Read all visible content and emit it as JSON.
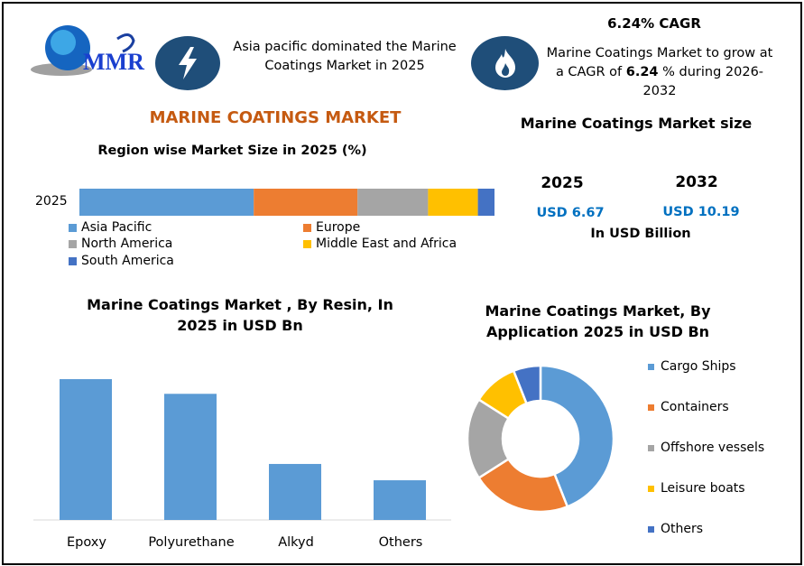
{
  "logo": {
    "text": "MMR"
  },
  "header": {
    "asia_text": "Asia pacific dominated the Marine Coatings Market in 2025",
    "cagr_title": "6.24% CAGR",
    "cagr_text_pre": "Marine Coatings Market to grow at a CAGR of ",
    "cagr_value": "6.24",
    "cagr_text_post": " % during 2026-2032",
    "icons": [
      "lightning-icon",
      "flame-icon"
    ],
    "icon_color": "#1f4e79"
  },
  "main_title": "MARINE COATINGS MARKET",
  "main_title_color": "#c55a11",
  "market_size": {
    "title": "Marine Coatings Market size",
    "year1": "2025",
    "value1": "USD 6.67",
    "year2": "2032",
    "value2": "USD 10.19",
    "unit": "In USD Billion",
    "value_color": "#0070c0"
  },
  "chart_data": [
    {
      "type": "bar",
      "stacked": true,
      "orientation": "horizontal",
      "title": "Region wise Market Size in 2025 (%)",
      "categories": [
        "2025"
      ],
      "series": [
        {
          "name": "Asia Pacific",
          "values": [
            42
          ],
          "color": "#5b9bd5"
        },
        {
          "name": "Europe",
          "values": [
            25
          ],
          "color": "#ed7d31"
        },
        {
          "name": "North America",
          "values": [
            17
          ],
          "color": "#a5a5a5"
        },
        {
          "name": "Middle East and Africa",
          "values": [
            12
          ],
          "color": "#ffc000"
        },
        {
          "name": "South America",
          "values": [
            4
          ],
          "color": "#4472c4"
        }
      ],
      "legend": "bottom"
    },
    {
      "type": "bar",
      "title": "Marine Coatings Market , By  Resin, In 2025 in USD Bn",
      "categories": [
        "Epoxy",
        "Polyurethane",
        "Alkyd",
        "Others"
      ],
      "values": [
        2.59,
        2.32,
        1.03,
        0.73
      ],
      "color": "#5b9bd5",
      "grid": false
    },
    {
      "type": "pie",
      "donut": true,
      "title": "Marine Coatings Market, By Application 2025 in USD Bn",
      "labels": [
        "Cargo Ships",
        "Containers",
        "Offshore vessels",
        "Leisure boats",
        "Others"
      ],
      "values": [
        44,
        22,
        18,
        10,
        6
      ],
      "colors": [
        "#5b9bd5",
        "#ed7d31",
        "#a5a5a5",
        "#ffc000",
        "#4472c4"
      ],
      "legend": "right"
    }
  ]
}
